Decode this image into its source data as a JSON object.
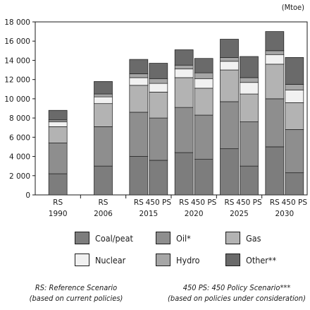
{
  "unit_label": "(Mtoe)",
  "chart_data": {
    "type": "bar",
    "stacked": true,
    "ylim": [
      0,
      18000
    ],
    "yticks": [
      "0",
      "2 000",
      "4 000",
      "6 000",
      "8 000",
      "10 000",
      "12 000",
      "14 000",
      "16 000",
      "18 000"
    ],
    "ytick_values": [
      0,
      2000,
      4000,
      6000,
      8000,
      10000,
      12000,
      14000,
      16000,
      18000
    ],
    "groups": [
      {
        "year": "1990",
        "bars": [
          {
            "scenario": "RS",
            "values": [
              2200,
              3200,
              1700,
              500,
              200,
              1000
            ]
          }
        ]
      },
      {
        "year": "2006",
        "bars": [
          {
            "scenario": "RS",
            "values": [
              3000,
              4100,
              2400,
              700,
              300,
              1300
            ]
          }
        ]
      },
      {
        "year": "2015",
        "bars": [
          {
            "scenario": "RS",
            "values": [
              4000,
              4600,
              2800,
              800,
              400,
              1500
            ]
          },
          {
            "scenario": "450 PS",
            "values": [
              3600,
              4400,
              2700,
              900,
              500,
              1600
            ]
          }
        ]
      },
      {
        "year": "2020",
        "bars": [
          {
            "scenario": "RS",
            "values": [
              4400,
              4700,
              3100,
              900,
              400,
              1600
            ]
          },
          {
            "scenario": "450 PS",
            "values": [
              3700,
              4600,
              2800,
              1000,
              600,
              1500
            ]
          }
        ]
      },
      {
        "year": "2025",
        "bars": [
          {
            "scenario": "RS",
            "values": [
              4800,
              4900,
              3300,
              900,
              400,
              1900
            ]
          },
          {
            "scenario": "450 PS",
            "values": [
              3000,
              4600,
              2900,
              1200,
              500,
              2200
            ]
          }
        ]
      },
      {
        "year": "2030",
        "bars": [
          {
            "scenario": "RS",
            "values": [
              5000,
              5000,
              3600,
              1000,
              400,
              2000
            ]
          },
          {
            "scenario": "450 PS",
            "values": [
              2300,
              4500,
              2800,
              1300,
              600,
              2800
            ]
          }
        ]
      }
    ],
    "series": [
      {
        "name": "Coal/peat",
        "color": "#7d7d7d"
      },
      {
        "name": "Oil*",
        "color": "#8e8e8e"
      },
      {
        "name": "Gas",
        "color": "#b3b3b3"
      },
      {
        "name": "Nuclear",
        "color": "#f1f1f1"
      },
      {
        "name": "Hydro",
        "color": "#a6a6a6"
      },
      {
        "name": "Other**",
        "color": "#6a6a6a"
      }
    ]
  },
  "notes": {
    "rs_line1": "RS: Reference Scenario",
    "rs_line2": "(based on current policies)",
    "ps_line1": "450 PS: 450 Policy Scenario***",
    "ps_line2": "(based on policies under consideration)"
  }
}
